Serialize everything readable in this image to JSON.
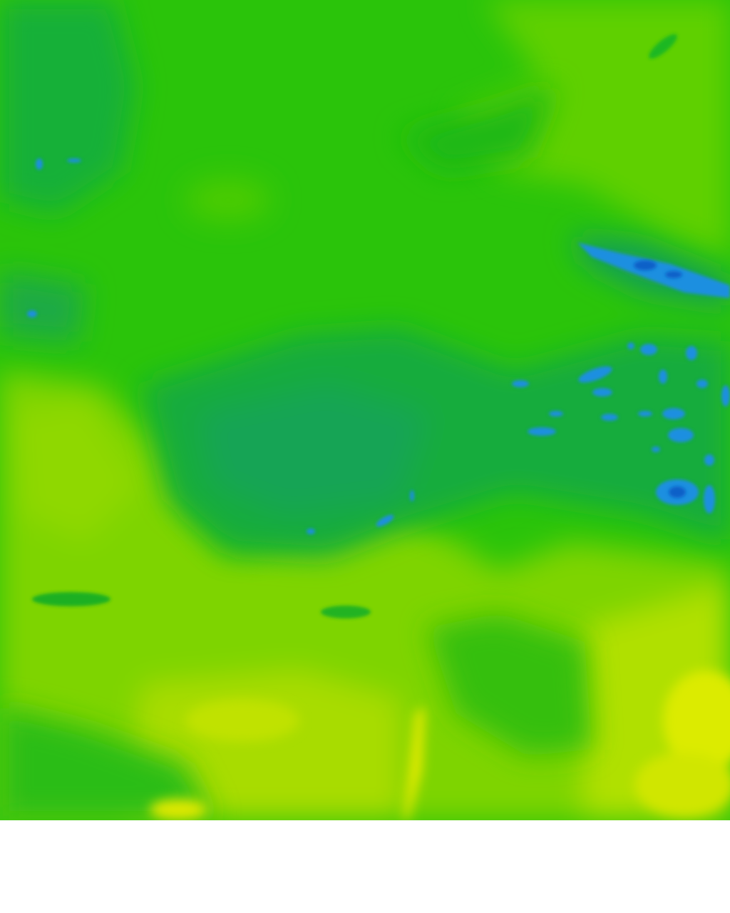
{
  "map": {
    "type": "raster-field",
    "colors": {
      "base_green": "#2ac40a",
      "dark_green": "#1db81a",
      "teal": "#12a85a",
      "blue": "#1a8fe0",
      "deep_blue": "#1060c8",
      "light_green": "#5fd000",
      "yellow_green": "#8fd800",
      "lime": "#b8e000",
      "yellow": "#dceb00",
      "background": "#ffffff"
    }
  }
}
